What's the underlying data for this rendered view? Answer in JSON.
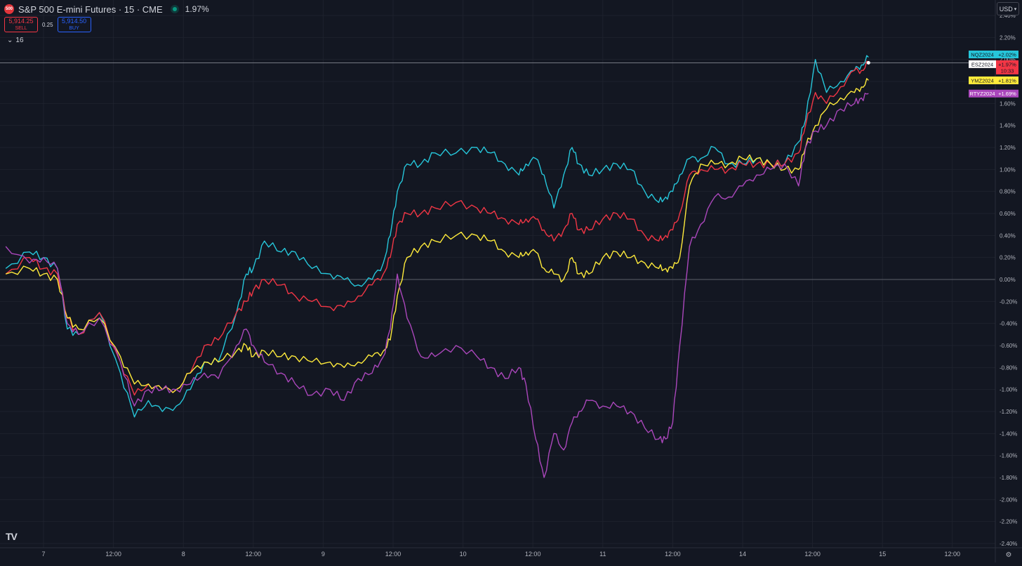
{
  "header": {
    "logo_text": "500",
    "title": "S&P 500 E-mini Futures · 15 · CME",
    "change": "1.97%",
    "sell_price": "5,914.25",
    "sell_label": "SELL",
    "spread": "0.25",
    "buy_price": "5,914.50",
    "buy_label": "BUY",
    "indicator_count": "16",
    "currency": "USD",
    "brand": "TV"
  },
  "colors": {
    "background": "#131722",
    "NQZ2024": "#26c6da",
    "ESZ2024": "#f23645",
    "YMZ2024": "#ffeb3b",
    "RTYZ2024": "#ab47bc",
    "sell": "#f23645",
    "buy": "#2962ff"
  },
  "chart_data": {
    "type": "line",
    "y_unit": "%",
    "ylim": [
      -2.4,
      2.4
    ],
    "y_ticks": [
      "2.40%",
      "2.20%",
      "2.00%",
      "1.80%",
      "1.60%",
      "1.40%",
      "1.20%",
      "1.00%",
      "0.80%",
      "0.60%",
      "0.40%",
      "0.20%",
      "0.00%",
      "-0.20%",
      "-0.40%",
      "-0.60%",
      "-0.80%",
      "-1.00%",
      "-1.20%",
      "-1.40%",
      "-1.60%",
      "-1.80%",
      "-2.00%",
      "-2.20%",
      "-2.40%"
    ],
    "x_ticks": [
      "7",
      "12:00",
      "8",
      "12:00",
      "9",
      "12:00",
      "10",
      "12:00",
      "11",
      "12:00",
      "14",
      "12:00",
      "15",
      "12:00"
    ],
    "session_ticks": [
      0,
      0.5,
      1,
      1.5,
      2,
      2.5,
      3,
      3.5,
      4,
      4.5,
      5,
      5.5,
      6,
      6.5
    ],
    "grid": true,
    "zero_line": 0,
    "series": [
      {
        "name": "NQZ2024",
        "label": "NQZ2024",
        "value_label": "+2.02%",
        "points": [
          [
            -0.27,
            0.1
          ],
          [
            -0.1,
            0.25
          ],
          [
            0,
            0.2
          ],
          [
            0.1,
            0.1
          ],
          [
            0.17,
            -0.45
          ],
          [
            0.25,
            -0.5
          ],
          [
            0.4,
            -0.3
          ],
          [
            0.55,
            -0.85
          ],
          [
            0.65,
            -1.25
          ],
          [
            0.75,
            -1.1
          ],
          [
            0.85,
            -1.2
          ],
          [
            0.95,
            -1.15
          ],
          [
            1.05,
            -1.0
          ],
          [
            1.15,
            -0.75
          ],
          [
            1.25,
            -0.75
          ],
          [
            1.38,
            -0.3
          ],
          [
            1.45,
            0.05
          ],
          [
            1.5,
            0.1
          ],
          [
            1.58,
            0.35
          ],
          [
            1.7,
            0.25
          ],
          [
            1.8,
            0.25
          ],
          [
            1.92,
            0.1
          ],
          [
            2.05,
            0.05
          ],
          [
            2.15,
            0.0
          ],
          [
            2.25,
            -0.05
          ],
          [
            2.35,
            0.0
          ],
          [
            2.43,
            0.15
          ],
          [
            2.48,
            0.4
          ],
          [
            2.53,
            0.8
          ],
          [
            2.6,
            1.05
          ],
          [
            2.7,
            1.05
          ],
          [
            2.8,
            1.15
          ],
          [
            2.95,
            1.15
          ],
          [
            3.1,
            1.2
          ],
          [
            3.2,
            1.15
          ],
          [
            3.3,
            1.05
          ],
          [
            3.4,
            0.95
          ],
          [
            3.45,
            1.05
          ],
          [
            3.52,
            1.1
          ],
          [
            3.58,
            0.95
          ],
          [
            3.65,
            0.65
          ],
          [
            3.72,
            0.95
          ],
          [
            3.78,
            1.2
          ],
          [
            3.83,
            1.05
          ],
          [
            3.9,
            0.95
          ],
          [
            4.0,
            1.0
          ],
          [
            4.1,
            1.05
          ],
          [
            4.2,
            1.0
          ],
          [
            4.3,
            0.8
          ],
          [
            4.4,
            0.7
          ],
          [
            4.45,
            0.75
          ],
          [
            4.5,
            0.8
          ],
          [
            4.55,
            0.95
          ],
          [
            4.62,
            1.1
          ],
          [
            4.7,
            1.1
          ],
          [
            4.8,
            1.2
          ],
          [
            4.9,
            1.05
          ],
          [
            5.0,
            1.05
          ],
          [
            5.1,
            1.1
          ],
          [
            5.2,
            1.05
          ],
          [
            5.3,
            1.05
          ],
          [
            5.4,
            1.25
          ],
          [
            5.45,
            1.45
          ],
          [
            5.52,
            2.0
          ],
          [
            5.6,
            1.7
          ],
          [
            5.7,
            1.8
          ],
          [
            5.8,
            1.9
          ],
          [
            5.85,
            1.95
          ],
          [
            5.9,
            2.02
          ]
        ]
      },
      {
        "name": "ESZ2024",
        "label": "ESZ2024",
        "value_label": "+1.97%",
        "time_label": "10:33",
        "points": [
          [
            -0.27,
            0.05
          ],
          [
            -0.1,
            0.2
          ],
          [
            0,
            0.1
          ],
          [
            0.1,
            0.05
          ],
          [
            0.17,
            -0.35
          ],
          [
            0.25,
            -0.5
          ],
          [
            0.4,
            -0.3
          ],
          [
            0.55,
            -0.75
          ],
          [
            0.65,
            -1.05
          ],
          [
            0.75,
            -0.95
          ],
          [
            0.85,
            -1.0
          ],
          [
            0.95,
            -1.0
          ],
          [
            1.05,
            -0.85
          ],
          [
            1.15,
            -0.6
          ],
          [
            1.25,
            -0.55
          ],
          [
            1.38,
            -0.3
          ],
          [
            1.45,
            -0.2
          ],
          [
            1.5,
            -0.1
          ],
          [
            1.58,
            0.0
          ],
          [
            1.7,
            -0.05
          ],
          [
            1.8,
            -0.15
          ],
          [
            1.92,
            -0.2
          ],
          [
            2.05,
            -0.25
          ],
          [
            2.15,
            -0.25
          ],
          [
            2.25,
            -0.15
          ],
          [
            2.35,
            -0.05
          ],
          [
            2.43,
            0.05
          ],
          [
            2.48,
            0.2
          ],
          [
            2.53,
            0.5
          ],
          [
            2.6,
            0.6
          ],
          [
            2.7,
            0.6
          ],
          [
            2.8,
            0.65
          ],
          [
            2.95,
            0.7
          ],
          [
            3.1,
            0.65
          ],
          [
            3.2,
            0.6
          ],
          [
            3.3,
            0.55
          ],
          [
            3.4,
            0.5
          ],
          [
            3.45,
            0.55
          ],
          [
            3.52,
            0.55
          ],
          [
            3.58,
            0.45
          ],
          [
            3.65,
            0.35
          ],
          [
            3.72,
            0.45
          ],
          [
            3.78,
            0.6
          ],
          [
            3.83,
            0.45
          ],
          [
            3.9,
            0.45
          ],
          [
            4.0,
            0.55
          ],
          [
            4.1,
            0.6
          ],
          [
            4.2,
            0.55
          ],
          [
            4.3,
            0.4
          ],
          [
            4.4,
            0.35
          ],
          [
            4.45,
            0.4
          ],
          [
            4.5,
            0.45
          ],
          [
            4.55,
            0.6
          ],
          [
            4.62,
            0.95
          ],
          [
            4.7,
            1.0
          ],
          [
            4.8,
            1.0
          ],
          [
            4.9,
            1.0
          ],
          [
            5.0,
            1.05
          ],
          [
            5.1,
            1.05
          ],
          [
            5.2,
            1.05
          ],
          [
            5.3,
            1.05
          ],
          [
            5.4,
            1.15
          ],
          [
            5.45,
            1.4
          ],
          [
            5.52,
            1.7
          ],
          [
            5.6,
            1.6
          ],
          [
            5.7,
            1.75
          ],
          [
            5.8,
            1.9
          ],
          [
            5.85,
            1.9
          ],
          [
            5.9,
            1.97
          ]
        ]
      },
      {
        "name": "YMZ2024",
        "label": "YMZ2024",
        "value_label": "+1.81%",
        "points": [
          [
            -0.27,
            0.05
          ],
          [
            -0.1,
            0.1
          ],
          [
            0,
            0.05
          ],
          [
            0.1,
            0.0
          ],
          [
            0.17,
            -0.35
          ],
          [
            0.25,
            -0.45
          ],
          [
            0.4,
            -0.35
          ],
          [
            0.55,
            -0.7
          ],
          [
            0.65,
            -0.95
          ],
          [
            0.75,
            -0.95
          ],
          [
            0.85,
            -1.0
          ],
          [
            0.95,
            -1.0
          ],
          [
            1.05,
            -0.85
          ],
          [
            1.15,
            -0.75
          ],
          [
            1.25,
            -0.75
          ],
          [
            1.38,
            -0.65
          ],
          [
            1.45,
            -0.6
          ],
          [
            1.5,
            -0.7
          ],
          [
            1.58,
            -0.65
          ],
          [
            1.7,
            -0.7
          ],
          [
            1.8,
            -0.7
          ],
          [
            1.92,
            -0.75
          ],
          [
            2.05,
            -0.75
          ],
          [
            2.15,
            -0.8
          ],
          [
            2.25,
            -0.75
          ],
          [
            2.35,
            -0.7
          ],
          [
            2.43,
            -0.65
          ],
          [
            2.48,
            -0.55
          ],
          [
            2.53,
            -0.15
          ],
          [
            2.6,
            0.2
          ],
          [
            2.7,
            0.3
          ],
          [
            2.8,
            0.35
          ],
          [
            2.95,
            0.4
          ],
          [
            3.1,
            0.4
          ],
          [
            3.2,
            0.35
          ],
          [
            3.3,
            0.25
          ],
          [
            3.4,
            0.2
          ],
          [
            3.45,
            0.25
          ],
          [
            3.52,
            0.25
          ],
          [
            3.58,
            0.1
          ],
          [
            3.65,
            0.05
          ],
          [
            3.72,
            0.0
          ],
          [
            3.78,
            0.2
          ],
          [
            3.83,
            0.05
          ],
          [
            3.9,
            0.05
          ],
          [
            4.0,
            0.2
          ],
          [
            4.1,
            0.25
          ],
          [
            4.2,
            0.2
          ],
          [
            4.3,
            0.15
          ],
          [
            4.4,
            0.1
          ],
          [
            4.45,
            0.1
          ],
          [
            4.5,
            0.1
          ],
          [
            4.55,
            0.2
          ],
          [
            4.62,
            0.85
          ],
          [
            4.7,
            1.05
          ],
          [
            4.8,
            1.05
          ],
          [
            4.9,
            1.05
          ],
          [
            5.0,
            1.1
          ],
          [
            5.1,
            1.1
          ],
          [
            5.2,
            1.05
          ],
          [
            5.3,
            1.0
          ],
          [
            5.4,
            1.0
          ],
          [
            5.45,
            1.2
          ],
          [
            5.52,
            1.4
          ],
          [
            5.6,
            1.55
          ],
          [
            5.7,
            1.65
          ],
          [
            5.8,
            1.7
          ],
          [
            5.85,
            1.75
          ],
          [
            5.9,
            1.81
          ]
        ]
      },
      {
        "name": "RTYZ2024",
        "label": "RTYZ2024",
        "value_label": "+1.69%",
        "points": [
          [
            -0.27,
            0.3
          ],
          [
            -0.1,
            0.15
          ],
          [
            0,
            0.2
          ],
          [
            0.1,
            0.1
          ],
          [
            0.17,
            -0.4
          ],
          [
            0.25,
            -0.5
          ],
          [
            0.4,
            -0.35
          ],
          [
            0.55,
            -0.75
          ],
          [
            0.65,
            -1.15
          ],
          [
            0.75,
            -1.0
          ],
          [
            0.85,
            -1.0
          ],
          [
            0.95,
            -1.0
          ],
          [
            1.05,
            -0.95
          ],
          [
            1.15,
            -0.85
          ],
          [
            1.25,
            -0.9
          ],
          [
            1.38,
            -0.6
          ],
          [
            1.45,
            -0.45
          ],
          [
            1.5,
            -0.6
          ],
          [
            1.58,
            -0.75
          ],
          [
            1.7,
            -0.85
          ],
          [
            1.8,
            -0.95
          ],
          [
            1.92,
            -1.05
          ],
          [
            2.05,
            -1.0
          ],
          [
            2.15,
            -1.1
          ],
          [
            2.25,
            -0.9
          ],
          [
            2.35,
            -0.85
          ],
          [
            2.43,
            -0.7
          ],
          [
            2.48,
            -0.45
          ],
          [
            2.53,
            0.05
          ],
          [
            2.6,
            -0.35
          ],
          [
            2.7,
            -0.7
          ],
          [
            2.8,
            -0.7
          ],
          [
            2.95,
            -0.6
          ],
          [
            3.1,
            -0.7
          ],
          [
            3.2,
            -0.8
          ],
          [
            3.3,
            -0.9
          ],
          [
            3.4,
            -0.8
          ],
          [
            3.45,
            -0.95
          ],
          [
            3.52,
            -1.45
          ],
          [
            3.58,
            -1.8
          ],
          [
            3.65,
            -1.4
          ],
          [
            3.72,
            -1.55
          ],
          [
            3.78,
            -1.3
          ],
          [
            3.83,
            -1.2
          ],
          [
            3.9,
            -1.1
          ],
          [
            4.0,
            -1.15
          ],
          [
            4.1,
            -1.15
          ],
          [
            4.2,
            -1.2
          ],
          [
            4.3,
            -1.35
          ],
          [
            4.4,
            -1.45
          ],
          [
            4.45,
            -1.45
          ],
          [
            4.5,
            -1.3
          ],
          [
            4.55,
            -0.6
          ],
          [
            4.62,
            0.3
          ],
          [
            4.7,
            0.5
          ],
          [
            4.8,
            0.75
          ],
          [
            4.9,
            0.75
          ],
          [
            5.0,
            0.85
          ],
          [
            5.1,
            0.95
          ],
          [
            5.2,
            1.0
          ],
          [
            5.3,
            1.05
          ],
          [
            5.4,
            0.85
          ],
          [
            5.45,
            1.2
          ],
          [
            5.52,
            1.35
          ],
          [
            5.6,
            1.4
          ],
          [
            5.7,
            1.55
          ],
          [
            5.8,
            1.6
          ],
          [
            5.85,
            1.65
          ],
          [
            5.9,
            1.69
          ]
        ]
      }
    ]
  }
}
